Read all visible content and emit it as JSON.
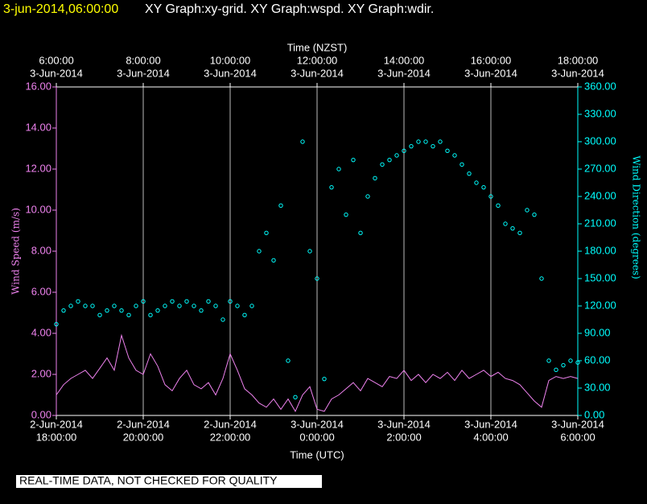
{
  "chart_data": {
    "type": "line",
    "header": {
      "time": "3-jun-2014,06:00:00",
      "graphs": "XY Graph:xy-grid.  XY Graph:wspd.  XY Graph:wdir."
    },
    "xlabel": "Time (UTC)",
    "x2label": "Time (NZST)",
    "ylabel": "Wind Speed (m/s)",
    "y2label": "Wind Direction (degrees)",
    "footer": "REAL-TIME DATA, NOT CHECKED FOR QUALITY",
    "xlim": [
      "2014-06-02T18:00",
      "2014-06-03T06:00"
    ],
    "xticks": [
      {
        "value": "2014-06-02T18:00",
        "label": [
          "2-Jun-2014",
          "18:00:00"
        ]
      },
      {
        "value": "2014-06-02T20:00",
        "label": [
          "2-Jun-2014",
          "20:00:00"
        ]
      },
      {
        "value": "2014-06-02T22:00",
        "label": [
          "2-Jun-2014",
          "22:00:00"
        ]
      },
      {
        "value": "2014-06-03T00:00",
        "label": [
          "3-Jun-2014",
          "0:00:00"
        ]
      },
      {
        "value": "2014-06-03T02:00",
        "label": [
          "3-Jun-2014",
          "2:00:00"
        ]
      },
      {
        "value": "2014-06-03T04:00",
        "label": [
          "3-Jun-2014",
          "4:00:00"
        ]
      },
      {
        "value": "2014-06-03T06:00",
        "label": [
          "3-Jun-2014",
          "6:00:00"
        ]
      }
    ],
    "x2ticks": [
      {
        "value": "2014-06-02T18:00",
        "label": [
          "6:00:00",
          "3-Jun-2014"
        ]
      },
      {
        "value": "2014-06-02T20:00",
        "label": [
          "8:00:00",
          "3-Jun-2014"
        ]
      },
      {
        "value": "2014-06-02T22:00",
        "label": [
          "10:00:00",
          "3-Jun-2014"
        ]
      },
      {
        "value": "2014-06-03T00:00",
        "label": [
          "12:00:00",
          "3-Jun-2014"
        ]
      },
      {
        "value": "2014-06-03T02:00",
        "label": [
          "14:00:00",
          "3-Jun-2014"
        ]
      },
      {
        "value": "2014-06-03T04:00",
        "label": [
          "16:00:00",
          "3-Jun-2014"
        ]
      },
      {
        "value": "2014-06-03T06:00",
        "label": [
          "18:00:00",
          "3-Jun-2014"
        ]
      }
    ],
    "ylim": [
      0,
      16
    ],
    "yticks": [
      {
        "value": 0,
        "label": "0.00"
      },
      {
        "value": 2,
        "label": "2.00"
      },
      {
        "value": 4,
        "label": "4.00"
      },
      {
        "value": 6,
        "label": "6.00"
      },
      {
        "value": 8,
        "label": "8.00"
      },
      {
        "value": 10,
        "label": "10.00"
      },
      {
        "value": 12,
        "label": "12.00"
      },
      {
        "value": 14,
        "label": "14.00"
      },
      {
        "value": 16,
        "label": "16.00"
      }
    ],
    "y2lim": [
      0,
      360
    ],
    "y2ticks": [
      {
        "value": 0,
        "label": "0.00"
      },
      {
        "value": 30,
        "label": "30.00"
      },
      {
        "value": 60,
        "label": "60.00"
      },
      {
        "value": 90,
        "label": "90.00"
      },
      {
        "value": 120,
        "label": "120.00"
      },
      {
        "value": 150,
        "label": "150.00"
      },
      {
        "value": 180,
        "label": "180.00"
      },
      {
        "value": 210,
        "label": "210.00"
      },
      {
        "value": 240,
        "label": "240.00"
      },
      {
        "value": 270,
        "label": "270.00"
      },
      {
        "value": 300,
        "label": "300.00"
      },
      {
        "value": 330,
        "label": "330.00"
      },
      {
        "value": 360,
        "label": "360.00"
      }
    ],
    "grid": true,
    "x": [
      "2014-06-02T18:00",
      "2014-06-02T18:10",
      "2014-06-02T18:20",
      "2014-06-02T18:30",
      "2014-06-02T18:40",
      "2014-06-02T18:50",
      "2014-06-02T19:00",
      "2014-06-02T19:10",
      "2014-06-02T19:20",
      "2014-06-02T19:30",
      "2014-06-02T19:40",
      "2014-06-02T19:50",
      "2014-06-02T20:00",
      "2014-06-02T20:10",
      "2014-06-02T20:20",
      "2014-06-02T20:30",
      "2014-06-02T20:40",
      "2014-06-02T20:50",
      "2014-06-02T21:00",
      "2014-06-02T21:10",
      "2014-06-02T21:20",
      "2014-06-02T21:30",
      "2014-06-02T21:40",
      "2014-06-02T21:50",
      "2014-06-02T22:00",
      "2014-06-02T22:10",
      "2014-06-02T22:20",
      "2014-06-02T22:30",
      "2014-06-02T22:40",
      "2014-06-02T22:50",
      "2014-06-02T23:00",
      "2014-06-02T23:10",
      "2014-06-02T23:20",
      "2014-06-02T23:30",
      "2014-06-02T23:40",
      "2014-06-02T23:50",
      "2014-06-03T00:00",
      "2014-06-03T00:10",
      "2014-06-03T00:20",
      "2014-06-03T00:30",
      "2014-06-03T00:40",
      "2014-06-03T00:50",
      "2014-06-03T01:00",
      "2014-06-03T01:10",
      "2014-06-03T01:20",
      "2014-06-03T01:30",
      "2014-06-03T01:40",
      "2014-06-03T01:50",
      "2014-06-03T02:00",
      "2014-06-03T02:10",
      "2014-06-03T02:20",
      "2014-06-03T02:30",
      "2014-06-03T02:40",
      "2014-06-03T02:50",
      "2014-06-03T03:00",
      "2014-06-03T03:10",
      "2014-06-03T03:20",
      "2014-06-03T03:30",
      "2014-06-03T03:40",
      "2014-06-03T03:50",
      "2014-06-03T04:00",
      "2014-06-03T04:10",
      "2014-06-03T04:20",
      "2014-06-03T04:30",
      "2014-06-03T04:40",
      "2014-06-03T04:50",
      "2014-06-03T05:00",
      "2014-06-03T05:10",
      "2014-06-03T05:20",
      "2014-06-03T05:30",
      "2014-06-03T05:40",
      "2014-06-03T05:50",
      "2014-06-03T06:00"
    ],
    "series": [
      {
        "name": "Wind Speed (m/s)",
        "type": "line",
        "axis": "y",
        "color": "#ee82ee",
        "values": [
          1.0,
          1.5,
          1.8,
          2.0,
          2.2,
          1.8,
          2.3,
          2.8,
          2.2,
          3.9,
          2.8,
          2.2,
          2.0,
          3.0,
          2.4,
          1.5,
          1.2,
          1.8,
          2.2,
          1.5,
          1.3,
          1.6,
          1.0,
          1.8,
          3.0,
          2.2,
          1.3,
          1.0,
          0.6,
          0.4,
          0.8,
          0.3,
          0.8,
          0.2,
          1.0,
          1.4,
          0.3,
          0.2,
          0.8,
          1.0,
          1.3,
          1.6,
          1.2,
          1.8,
          1.6,
          1.4,
          1.9,
          1.8,
          2.2,
          1.7,
          2.0,
          1.6,
          2.0,
          1.8,
          2.1,
          1.7,
          2.2,
          1.8,
          2.0,
          2.2,
          1.9,
          2.1,
          1.8,
          1.7,
          1.5,
          1.1,
          0.7,
          0.4,
          1.7,
          1.9,
          1.8,
          1.9,
          1.8
        ]
      },
      {
        "name": "Wind Direction (degrees)",
        "type": "scatter",
        "axis": "y2",
        "color": "#00ffff",
        "values": [
          100,
          115,
          120,
          125,
          120,
          120,
          110,
          115,
          120,
          115,
          110,
          120,
          125,
          110,
          115,
          120,
          125,
          120,
          125,
          120,
          115,
          125,
          120,
          105,
          125,
          120,
          110,
          120,
          180,
          200,
          170,
          230,
          60,
          20,
          300,
          180,
          150,
          40,
          250,
          270,
          220,
          280,
          200,
          240,
          260,
          275,
          280,
          285,
          290,
          295,
          300,
          300,
          295,
          300,
          290,
          285,
          275,
          265,
          255,
          250,
          240,
          230,
          210,
          205,
          200,
          225,
          220,
          150,
          60,
          50,
          55,
          60,
          58
        ]
      }
    ]
  }
}
